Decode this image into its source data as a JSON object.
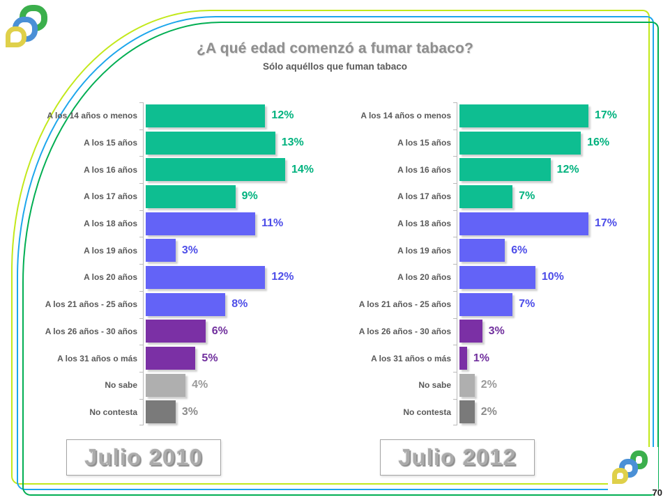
{
  "page_number": "70",
  "header": {
    "title": "¿A qué edad comenzó a fumar tabaco?",
    "subtitle": "Sólo aquéllos que fuman tabaco"
  },
  "frame_colors": [
    "#C2E81A",
    "#1CA6EC",
    "#00AE52"
  ],
  "logo": {
    "name": "three-leaf-logo",
    "colors": [
      "#3BAF4C",
      "#4A90D6",
      "#DFD04A"
    ]
  },
  "colors": {
    "green": {
      "bar": "#0EBE91",
      "text": "#00B27E"
    },
    "blue": {
      "bar": "#6363F7",
      "text": "#4D4DE8"
    },
    "purple": {
      "bar": "#7B30A5",
      "text": "#702F9D"
    },
    "gray_light": {
      "bar": "#AFAFAF",
      "text": "#9A9A9A"
    },
    "gray_dark": {
      "bar": "#7A7A7A",
      "text": "#8C8C8C"
    }
  },
  "chart_data": [
    {
      "type": "bar",
      "orientation": "horizontal",
      "title": "Julio 2010",
      "unit": "%",
      "xlim": [
        0,
        14
      ],
      "categories": [
        "A los 14 años o menos",
        "A los 15 años",
        "A los 16 años",
        "A los 17 años",
        "A los 18 años",
        "A los 19 años",
        "A los 20 años",
        "A los 21 años - 25 años",
        "A los 26 años - 30 años",
        "A los 31 años o más",
        "No sabe",
        "No contesta"
      ],
      "values": [
        12,
        13,
        14,
        9,
        11,
        3,
        12,
        8,
        6,
        5,
        4,
        3
      ],
      "color_keys": [
        "green",
        "green",
        "green",
        "green",
        "blue",
        "blue",
        "blue",
        "blue",
        "purple",
        "purple",
        "gray_light",
        "gray_dark"
      ]
    },
    {
      "type": "bar",
      "orientation": "horizontal",
      "title": "Julio 2012",
      "unit": "%",
      "xlim": [
        0,
        17
      ],
      "categories": [
        "A los 14 años o menos",
        "A los 15 años",
        "A los 16 años",
        "A los 17 años",
        "A los 18 años",
        "A los 19 años",
        "A los 20 años",
        "A los 21 años - 25 años",
        "A los 26 años - 30 años",
        "A los 31 años o más",
        "No sabe",
        "No contesta"
      ],
      "values": [
        17,
        16,
        12,
        7,
        17,
        6,
        10,
        7,
        3,
        1,
        2,
        2
      ],
      "color_keys": [
        "green",
        "green",
        "green",
        "green",
        "blue",
        "blue",
        "blue",
        "blue",
        "purple",
        "purple",
        "gray_light",
        "gray_dark"
      ]
    }
  ]
}
